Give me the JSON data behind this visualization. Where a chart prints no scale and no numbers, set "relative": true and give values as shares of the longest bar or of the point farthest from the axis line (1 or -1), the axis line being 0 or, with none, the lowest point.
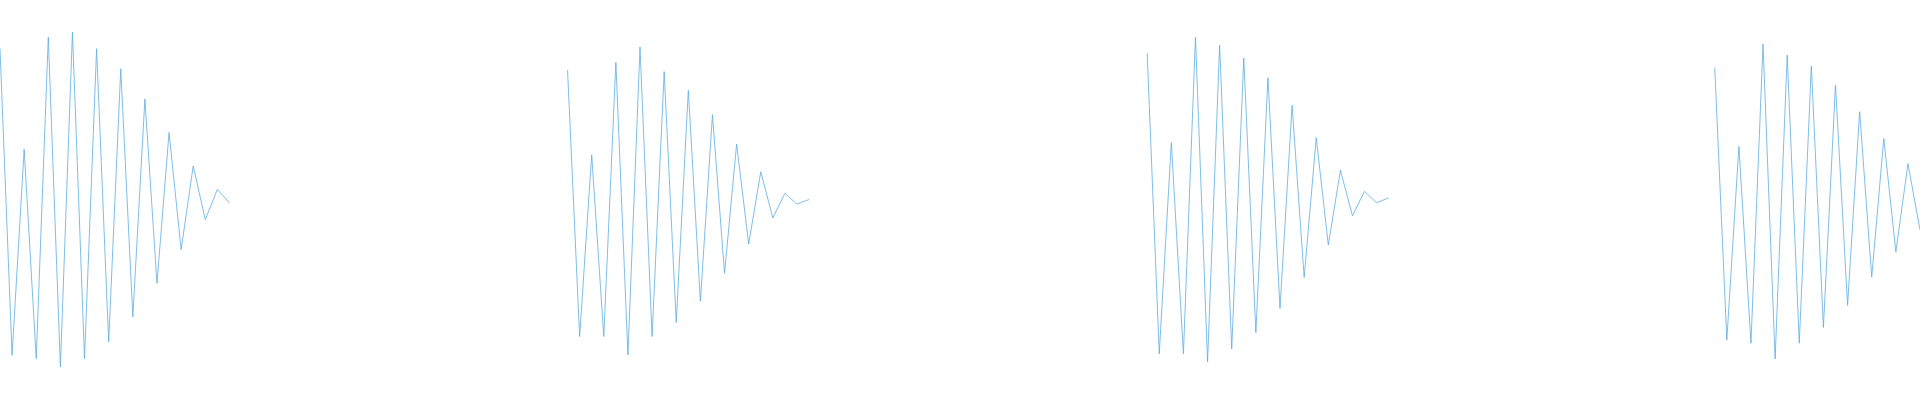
{
  "chart_data": [
    {
      "type": "line",
      "relative": true,
      "color": "#5dade2",
      "categories": [
        null,
        null,
        null,
        null,
        null,
        null,
        null,
        null,
        null,
        null,
        null,
        null,
        null,
        null,
        null,
        null,
        null,
        null,
        null,
        null
      ],
      "values": [
        0.95,
        0.035,
        0.65,
        0.025,
        0.985,
        0.0,
        1.0,
        0.025,
        0.95,
        0.075,
        0.89,
        0.15,
        0.8,
        0.25,
        0.7,
        0.35,
        0.6,
        0.44,
        0.53,
        0.49
      ]
    },
    {
      "type": "line",
      "relative": true,
      "color": "#5dade2",
      "categories": [
        null,
        null,
        null,
        null,
        null,
        null,
        null,
        null,
        null,
        null,
        null,
        null,
        null,
        null,
        null,
        null,
        null,
        null,
        null,
        null,
        null
      ],
      "values": [
        0.925,
        0.06,
        0.65,
        0.06,
        0.95,
        0.0,
        1.0,
        0.06,
        0.92,
        0.105,
        0.86,
        0.175,
        0.78,
        0.265,
        0.685,
        0.36,
        0.595,
        0.445,
        0.525,
        0.49,
        0.505
      ]
    },
    {
      "type": "line",
      "relative": true,
      "color": "#5dade2",
      "categories": [
        null,
        null,
        null,
        null,
        null,
        null,
        null,
        null,
        null,
        null,
        null,
        null,
        null,
        null,
        null,
        null,
        null,
        null,
        null,
        null,
        null
      ],
      "values": [
        0.95,
        0.025,
        0.675,
        0.025,
        1.0,
        0.0,
        0.975,
        0.04,
        0.935,
        0.09,
        0.875,
        0.165,
        0.79,
        0.26,
        0.69,
        0.36,
        0.59,
        0.45,
        0.525,
        0.49,
        0.505
      ]
    },
    {
      "type": "line",
      "relative": true,
      "color": "#5dade2",
      "categories": [
        null,
        null,
        null,
        null,
        null,
        null,
        null,
        null,
        null,
        null,
        null,
        null,
        null,
        null,
        null,
        null,
        null,
        null
      ],
      "values": [
        0.925,
        0.06,
        0.675,
        0.05,
        1.0,
        0.0,
        0.965,
        0.05,
        0.93,
        0.1,
        0.87,
        0.17,
        0.785,
        0.26,
        0.7,
        0.34,
        0.62,
        0.41
      ]
    }
  ]
}
